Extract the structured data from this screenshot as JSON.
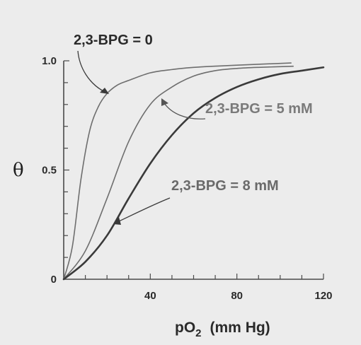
{
  "chart_data": {
    "type": "line",
    "xlabel": "pO",
    "xlabel_subscript": "2",
    "xlabel_units": "(mm Hg)",
    "ylabel": "θ",
    "xlim": [
      0,
      120
    ],
    "ylim": [
      0,
      1.0
    ],
    "x_ticks": [
      40,
      80,
      120
    ],
    "y_ticks": [
      {
        "value": 0,
        "label": "0"
      },
      {
        "value": 0.5,
        "label": "0.5"
      },
      {
        "value": 1.0,
        "label": "1.0"
      }
    ],
    "x_minor_step": 10,
    "y_minor_step": 0.1,
    "grid": false,
    "background": "#ececec",
    "series": [
      {
        "name": "2,3-BPG = 0",
        "color": "#6e6e6e",
        "stroke_width": 1.6,
        "x": [
          0,
          4,
          8,
          12,
          16,
          20,
          25,
          30,
          40,
          50,
          60,
          80,
          105
        ],
        "y": [
          0,
          0.15,
          0.46,
          0.68,
          0.79,
          0.85,
          0.89,
          0.91,
          0.945,
          0.96,
          0.97,
          0.98,
          0.99
        ]
      },
      {
        "name": "2,3-BPG = 5 mM",
        "color": "#6e6e6e",
        "stroke_width": 1.6,
        "x": [
          0,
          10,
          20,
          30,
          40,
          50,
          60,
          70,
          80,
          90,
          106
        ],
        "y": [
          0,
          0.13,
          0.37,
          0.63,
          0.8,
          0.88,
          0.93,
          0.955,
          0.965,
          0.97,
          0.975
        ]
      },
      {
        "name": "2,3-BPG = 8 mM",
        "color": "#3a3a3a",
        "stroke_width": 2.6,
        "x": [
          0,
          10,
          20,
          30,
          40,
          50,
          60,
          70,
          80,
          90,
          100,
          110,
          120
        ],
        "y": [
          0,
          0.08,
          0.2,
          0.37,
          0.53,
          0.66,
          0.76,
          0.83,
          0.88,
          0.915,
          0.94,
          0.955,
          0.97
        ]
      }
    ],
    "annotations": [
      {
        "text": "2,3-BPG = 0",
        "color": "#2a2a2a",
        "series": 0
      },
      {
        "text": "2,3-BPG = 5 mM",
        "color": "#7a7a7a",
        "series": 1
      },
      {
        "text": "2,3-BPG = 8 mM",
        "color": "#6a6a6a",
        "series": 2
      }
    ]
  }
}
